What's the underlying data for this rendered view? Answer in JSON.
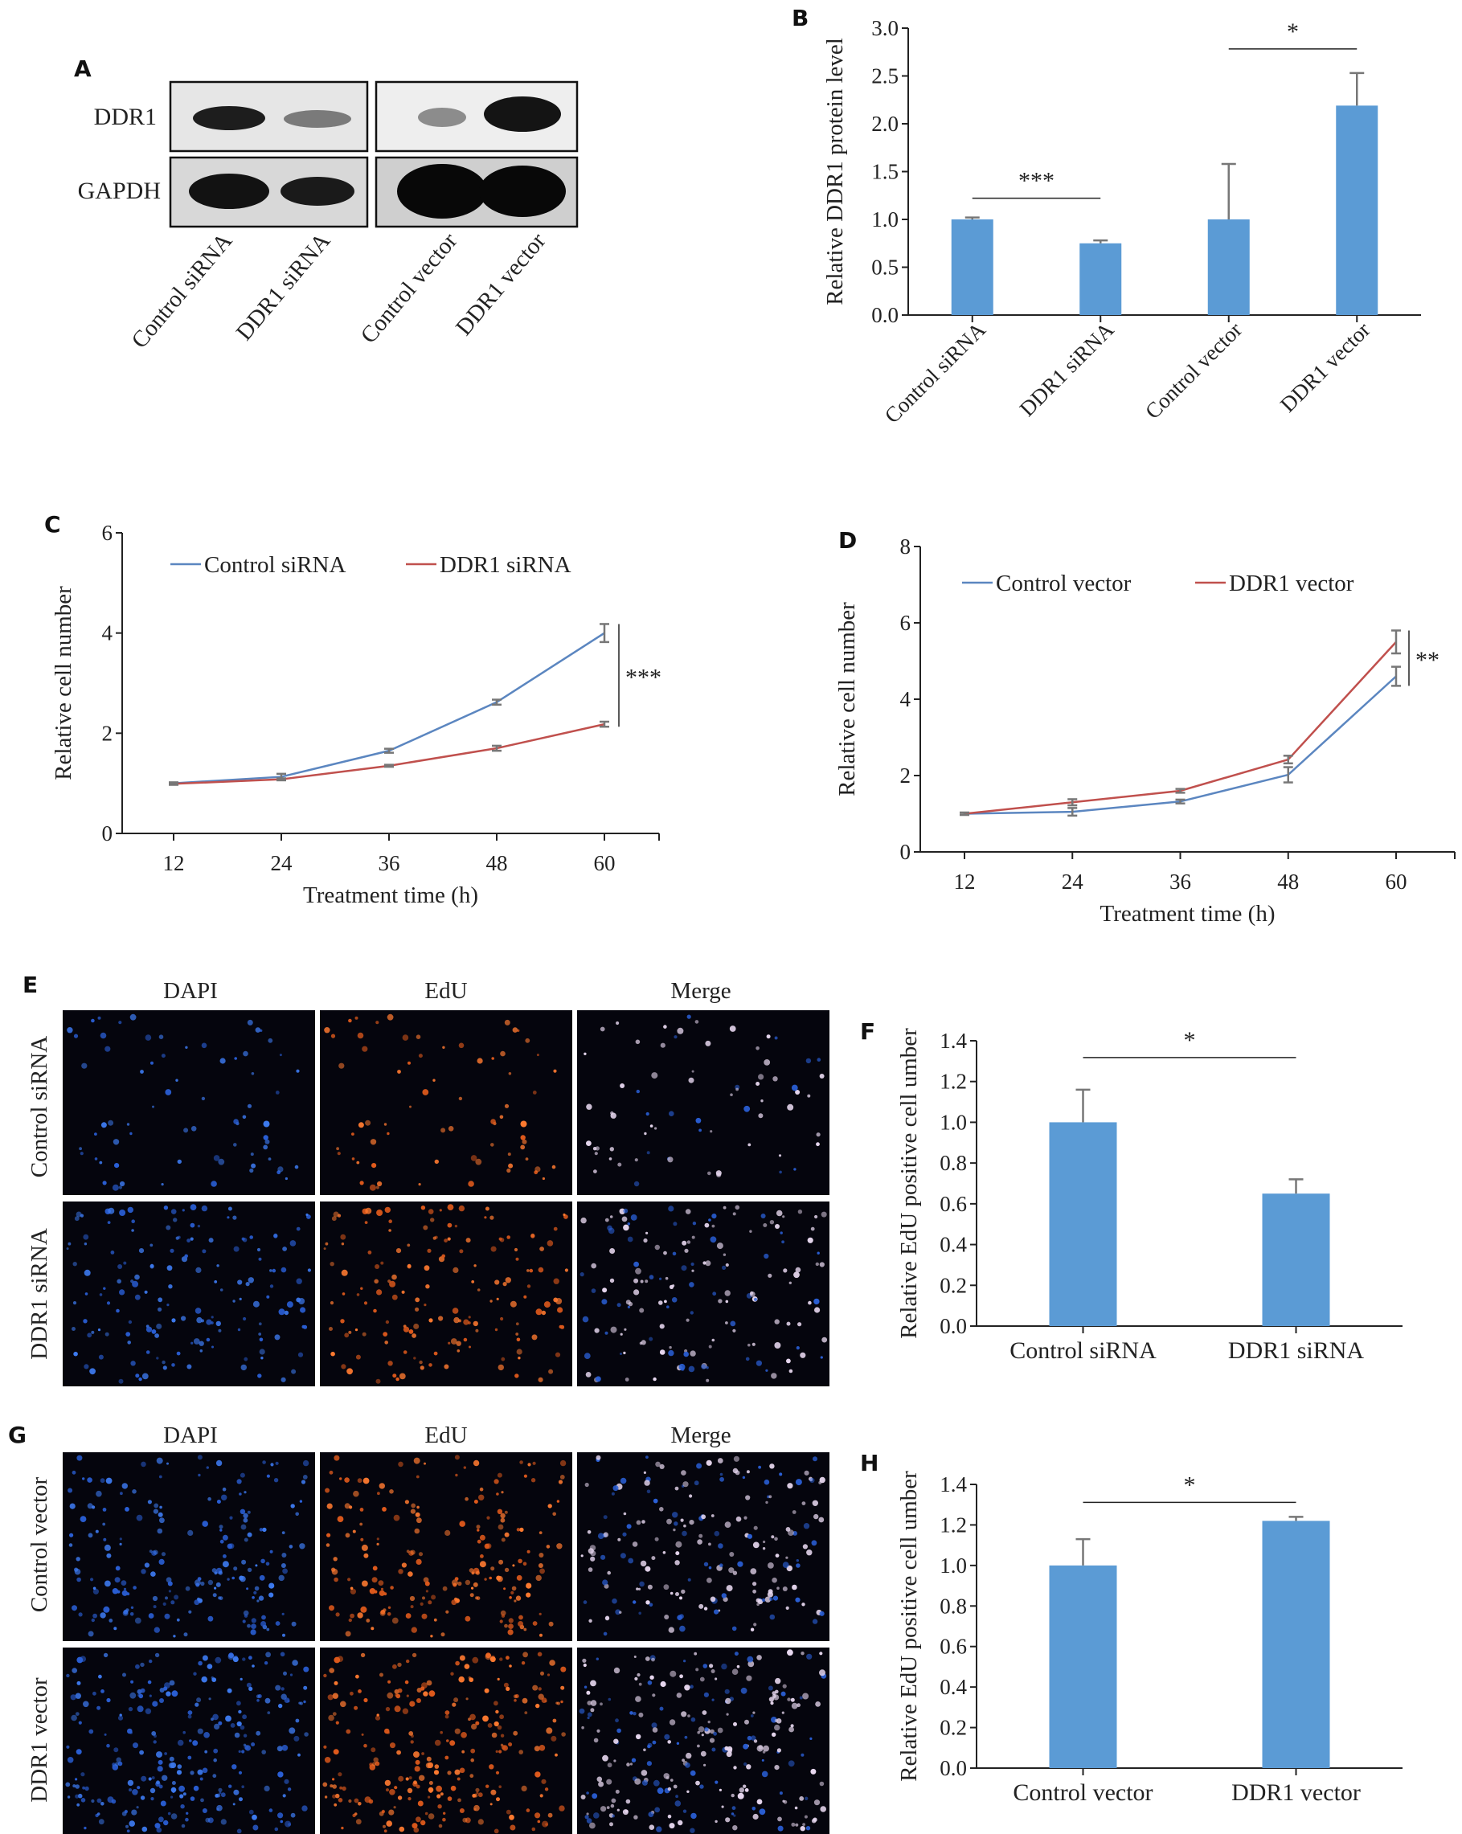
{
  "panel_labels": [
    "A",
    "B",
    "C",
    "D",
    "E",
    "F",
    "G",
    "H"
  ],
  "western_blot": {
    "row_labels": [
      "DDR1",
      "GAPDH"
    ],
    "lanes": [
      "Control siRNA",
      "DDR1 siRNA",
      "Control vector",
      "DDR1 vector"
    ]
  },
  "micrographs": {
    "E": {
      "columns": [
        "DAPI",
        "EdU",
        "Merge"
      ],
      "rows": [
        "Control siRNA",
        "DDR1 siRNA"
      ]
    },
    "G": {
      "columns": [
        "DAPI",
        "EdU",
        "Merge"
      ],
      "rows": [
        "Control vector",
        "DDR1 vector"
      ]
    }
  },
  "colors": {
    "bar": "#5b9bd5",
    "control_line": "#5b86c0",
    "treated_line": "#c0504d",
    "error_bar": "#777777",
    "dapi": "#2a5fd6",
    "edu": "#e05a1c",
    "merge_spot": "#e8d8f0",
    "blot_band": "#111111"
  },
  "chart_data": [
    {
      "panel": "B",
      "type": "bar",
      "ylabel": "Relative DDR1 protein level",
      "categories": [
        "Control siRNA",
        "DDR1 siRNA",
        "Control vector",
        "DDR1 vector"
      ],
      "values": [
        1.0,
        0.75,
        1.0,
        2.19
      ],
      "errors": [
        0.02,
        0.03,
        0.58,
        0.34
      ],
      "ylim": [
        0,
        3.0
      ],
      "yticks": [
        "0.0",
        "0.5",
        "1.0",
        "1.5",
        "2.0",
        "2.5",
        "3.0"
      ],
      "significance": [
        {
          "label": "***",
          "between": [
            0,
            1
          ]
        },
        {
          "label": "*",
          "between": [
            2,
            3
          ]
        }
      ]
    },
    {
      "panel": "C",
      "type": "line",
      "xlabel": "Treatment time (h)",
      "ylabel": "Relative cell number",
      "x": [
        12,
        24,
        36,
        48,
        60
      ],
      "xticks": [
        "12",
        "24",
        "36",
        "48",
        "60"
      ],
      "yticks": [
        "0",
        "2",
        "4",
        "6"
      ],
      "ylim": [
        0,
        6
      ],
      "series": [
        {
          "name": "Control siRNA",
          "values": [
            1.0,
            1.13,
            1.65,
            2.62,
            4.0
          ],
          "errors": [
            0.02,
            0.06,
            0.04,
            0.05,
            0.18
          ]
        },
        {
          "name": "DDR1 siRNA",
          "values": [
            0.99,
            1.08,
            1.35,
            1.7,
            2.18
          ],
          "errors": [
            0.02,
            0.02,
            0.02,
            0.05,
            0.05
          ]
        }
      ],
      "legend": "top",
      "significance": [
        {
          "label": "***",
          "at_x": 60
        }
      ]
    },
    {
      "panel": "D",
      "type": "line",
      "xlabel": "Treatment time (h)",
      "ylabel": "Relative cell number",
      "x": [
        12,
        24,
        36,
        48,
        60
      ],
      "xticks": [
        "12",
        "24",
        "36",
        "48",
        "60"
      ],
      "yticks": [
        "0",
        "2",
        "4",
        "6",
        "8"
      ],
      "ylim": [
        0,
        8
      ],
      "series": [
        {
          "name": "Control vector",
          "values": [
            1.0,
            1.05,
            1.32,
            2.02,
            4.6
          ],
          "errors": [
            0.03,
            0.1,
            0.05,
            0.2,
            0.25
          ]
        },
        {
          "name": "DDR1 vector",
          "values": [
            1.0,
            1.3,
            1.6,
            2.42,
            5.5
          ],
          "errors": [
            0.03,
            0.08,
            0.05,
            0.1,
            0.3
          ]
        }
      ],
      "legend": "top",
      "significance": [
        {
          "label": "**",
          "at_x": 60
        }
      ]
    },
    {
      "panel": "F",
      "type": "bar",
      "ylabel": "Relative EdU positive cell umber",
      "categories": [
        "Control siRNA",
        "DDR1 siRNA"
      ],
      "values": [
        1.0,
        0.65
      ],
      "errors": [
        0.16,
        0.07
      ],
      "ylim": [
        0,
        1.4
      ],
      "yticks": [
        "0.0",
        "0.2",
        "0.4",
        "0.6",
        "0.8",
        "1.0",
        "1.2",
        "1.4"
      ],
      "significance": [
        {
          "label": "*",
          "between": [
            0,
            1
          ]
        }
      ]
    },
    {
      "panel": "H",
      "type": "bar",
      "ylabel": "Relative EdU positive cell umber",
      "categories": [
        "Control vector",
        "DDR1 vector"
      ],
      "values": [
        1.0,
        1.22
      ],
      "errors": [
        0.13,
        0.02
      ],
      "ylim": [
        0,
        1.4
      ],
      "yticks": [
        "0.0",
        "0.2",
        "0.4",
        "0.6",
        "0.8",
        "1.0",
        "1.2",
        "1.4"
      ],
      "significance": [
        {
          "label": "*",
          "between": [
            0,
            1
          ]
        }
      ]
    }
  ]
}
